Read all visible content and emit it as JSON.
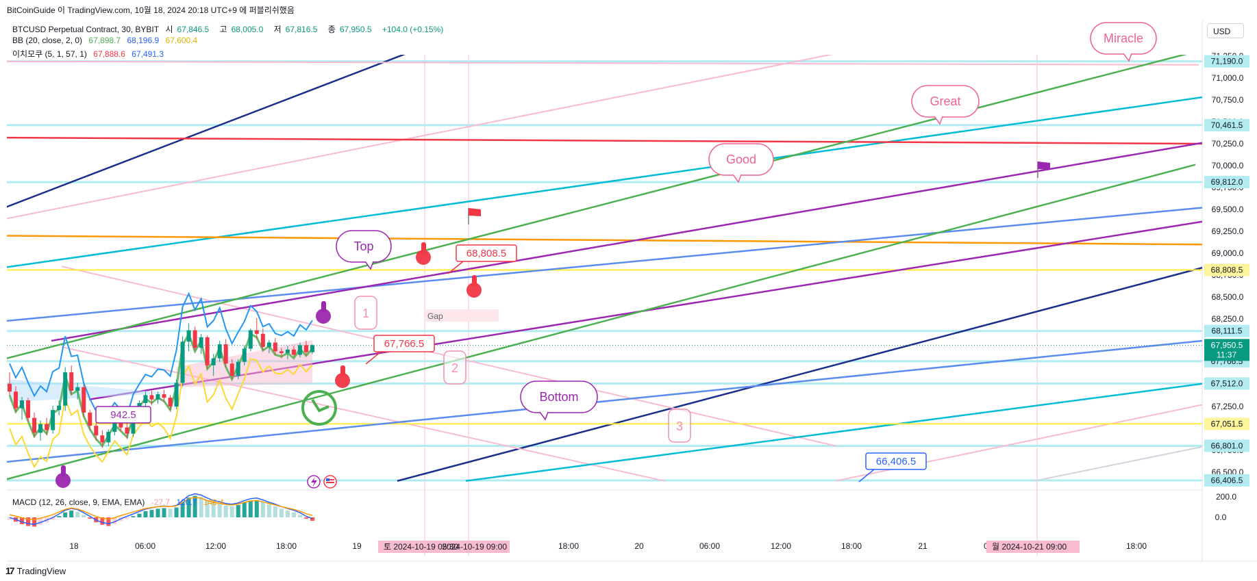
{
  "header": {
    "publish_line": "BitCoinGuide 이 TradingView.com, 10월 18, 2024 20:18 UTC+9 에 퍼블리쉬했음",
    "symbol": "BTCUSD Perpetual Contract, 30, BYBIT",
    "open_label": "시",
    "open": "67,846.5",
    "high_label": "고",
    "high": "68,005.0",
    "low_label": "저",
    "low": "67,816.5",
    "close_label": "종",
    "close": "67,950.5",
    "change": "+104.0 (+0.15%)"
  },
  "indicators": {
    "bb": {
      "label": "BB (20, close, 2, 0)",
      "values": [
        "67,898.7",
        "68,196.9",
        "67,600.4"
      ],
      "colors": [
        "#4caf50",
        "#2962ff",
        "#e0b400"
      ]
    },
    "ichimoku": {
      "label": "이치모쿠 (5, 1, 57, 1)",
      "values": [
        "67,888.6",
        "67,491.3"
      ],
      "colors": [
        "#f23645",
        "#2962ff"
      ]
    },
    "macd": {
      "label": "MACD (12, 26, close, 9, EMA, EMA)",
      "values": [
        "-27.7",
        "120.7",
        "148.4"
      ],
      "colors": [
        "#f7a1a1",
        "#2962ff",
        "#ff9800"
      ]
    }
  },
  "currency_button": "USD",
  "brand": "TradingView",
  "colors": {
    "up": "#089981",
    "down": "#f23645",
    "navy": "#1a2f8a",
    "pink": "#f8bbd0",
    "cyan": "#00bcd4",
    "red": "#f23645",
    "orange": "#ff9800",
    "yellow": "#ffeb3b",
    "blue": "#5b8def",
    "green": "#4caf50",
    "purple": "#9c27b0"
  },
  "chart_data": {
    "type": "candlestick",
    "symbol": "BTCUSD Perpetual Contract",
    "interval": "30",
    "exchange": "BYBIT",
    "price_axis": {
      "ticks": [
        "71,250.0",
        "71,000.0",
        "70,750.0",
        "70,500.0",
        "70,250.0",
        "70,000.0",
        "69,750.0",
        "69,500.0",
        "69,250.0",
        "69,000.0",
        "68,750.0",
        "68,500.0",
        "68,250.0",
        "67,250.0",
        "66,750.0",
        "66,500.0"
      ],
      "ylim": [
        66250,
        71450
      ]
    },
    "macd_axis": {
      "ticks": [
        "200.0",
        "0.0"
      ]
    },
    "time_axis": {
      "ticks": [
        "18",
        "06:00",
        "12:00",
        "18:00",
        "19",
        "06:00",
        "12:00",
        "18:00",
        "20",
        "06:00",
        "12:00",
        "18:00",
        "21",
        "06:00",
        "12:00",
        "18:00"
      ],
      "highlight_labels": [
        "토 2024-10-19  05:30",
        "2024-10-19  09:00",
        "월 2024-10-21  09:00"
      ]
    },
    "price_labels": [
      {
        "text": "71,190.0",
        "price": 71190,
        "bg": "#b2ebf2"
      },
      {
        "text": "70,461.5",
        "price": 70461.5,
        "bg": "#b2ebf2"
      },
      {
        "text": "69,812.0",
        "price": 69812,
        "bg": "#b2ebf2"
      },
      {
        "text": "68,808.5",
        "price": 68808.5,
        "bg": "#fff59d"
      },
      {
        "text": "68,111.5",
        "price": 68111.5,
        "bg": "#b2ebf2"
      },
      {
        "text": "67,766.5",
        "price": 67766.5,
        "bg": "#b2ebf2"
      },
      {
        "text": "67,512.0",
        "price": 67512,
        "bg": "#b2ebf2"
      },
      {
        "text": "67,051.5",
        "price": 67051.5,
        "bg": "#fff59d"
      },
      {
        "text": "66,801.0",
        "price": 66801,
        "bg": "#b2ebf2"
      },
      {
        "text": "66,406.5",
        "price": 66406.5,
        "bg": "#b2ebf2"
      }
    ],
    "current_price": {
      "text": "67,950.5",
      "countdown": "11:37",
      "price": 67950.5,
      "bg": "#089981"
    },
    "annotations": {
      "bubbles": [
        "Miracle",
        "Great",
        "Good",
        "Top",
        "Bottom"
      ],
      "boxes": [
        "68,808.5",
        "67,766.5",
        "66,406.5",
        "942.5"
      ],
      "numbers": [
        "1",
        "2",
        "3"
      ],
      "gap": "Gap"
    },
    "candles": [
      [
        67510,
        67640,
        67380,
        67420
      ],
      [
        67420,
        67480,
        67190,
        67230
      ],
      [
        67230,
        67360,
        67100,
        67320
      ],
      [
        67320,
        67350,
        67080,
        67120
      ],
      [
        67120,
        67180,
        66900,
        66950
      ],
      [
        66950,
        67090,
        66860,
        67050
      ],
      [
        67050,
        67120,
        66920,
        66980
      ],
      [
        66980,
        67260,
        66940,
        67210
      ],
      [
        67210,
        67320,
        67150,
        67260
      ],
      [
        67260,
        67700,
        67200,
        67640
      ],
      [
        67640,
        67720,
        67380,
        67430
      ],
      [
        67430,
        67520,
        67330,
        67470
      ],
      [
        67470,
        67500,
        67130,
        67180
      ],
      [
        67180,
        67210,
        66980,
        67030
      ],
      [
        67030,
        67080,
        66860,
        66920
      ],
      [
        66920,
        66980,
        66780,
        66840
      ],
      [
        66840,
        66990,
        66800,
        66960
      ],
      [
        66960,
        67120,
        66920,
        67080
      ],
      [
        67080,
        67140,
        66960,
        67010
      ],
      [
        67010,
        67060,
        66880,
        66940
      ],
      [
        66940,
        67220,
        66900,
        67180
      ],
      [
        67180,
        67320,
        67140,
        67290
      ],
      [
        67290,
        67420,
        67250,
        67380
      ],
      [
        67380,
        67430,
        67270,
        67330
      ],
      [
        67330,
        67420,
        67280,
        67390
      ],
      [
        67390,
        67440,
        67300,
        67350
      ],
      [
        67350,
        67380,
        67210,
        67250
      ],
      [
        67250,
        67560,
        67220,
        67520
      ],
      [
        67520,
        68050,
        67480,
        67990
      ],
      [
        67990,
        68200,
        67880,
        68120
      ],
      [
        68120,
        68160,
        67890,
        67920
      ],
      [
        67920,
        68080,
        67850,
        68040
      ],
      [
        68040,
        68060,
        67680,
        67720
      ],
      [
        67720,
        67850,
        67600,
        67800
      ],
      [
        67800,
        68000,
        67760,
        67960
      ],
      [
        67960,
        68020,
        67700,
        67740
      ],
      [
        67740,
        67790,
        67560,
        67600
      ],
      [
        67600,
        67790,
        67560,
        67760
      ],
      [
        67760,
        67950,
        67720,
        67910
      ],
      [
        67910,
        68140,
        67880,
        68120
      ],
      [
        68120,
        68260,
        68020,
        68080
      ],
      [
        68080,
        68140,
        67890,
        67930
      ],
      [
        67930,
        68010,
        67860,
        67980
      ],
      [
        67980,
        68030,
        67840,
        67880
      ],
      [
        67880,
        67920,
        67800,
        67860
      ],
      [
        67860,
        67940,
        67790,
        67900
      ],
      [
        67900,
        67940,
        67820,
        67840
      ],
      [
        67840,
        67980,
        67810,
        67950
      ],
      [
        67950,
        68000,
        67830,
        67870
      ],
      [
        67870,
        67960,
        67850,
        67950
      ]
    ],
    "macd_hist": [
      -20,
      -35,
      -55,
      -70,
      -75,
      -60,
      -40,
      -20,
      10,
      40,
      55,
      45,
      20,
      -10,
      -40,
      -60,
      -70,
      -55,
      -30,
      -10,
      10,
      30,
      50,
      60,
      70,
      75,
      70,
      80,
      120,
      160,
      175,
      165,
      140,
      120,
      110,
      95,
      90,
      100,
      120,
      135,
      140,
      125,
      105,
      90,
      70,
      55,
      40,
      20,
      -10,
      -28
    ],
    "trendlines": [
      {
        "color": "#1a2f8a",
        "p1": [
          0,
          69500
        ],
        "p2": [
          650,
          71450
        ]
      },
      {
        "color": "#1a2f8a",
        "p1": [
          580,
          66400
        ],
        "p2": [
          1835,
          69000
        ]
      },
      {
        "color": "#f8bbd0",
        "p1": [
          0,
          69380
        ],
        "p2": [
          1330,
          71450
        ]
      },
      {
        "color": "#f8bbd0",
        "p1": [
          0,
          71190
        ],
        "p2": [
          1750,
          71150
        ]
      },
      {
        "color": "#f8bbd0",
        "p1": [
          90,
          68850
        ],
        "p2": [
          1220,
          66800
        ]
      },
      {
        "color": "#f8bbd0",
        "p1": [
          90,
          67930
        ],
        "p2": [
          970,
          66400
        ]
      },
      {
        "color": "#f8bbd0",
        "p1": [
          1220,
          66400
        ],
        "p2": [
          1755,
          67270
        ]
      },
      {
        "color": "#00bcd4",
        "p1": [
          0,
          68830
        ],
        "p2": [
          1755,
          70780
        ]
      },
      {
        "color": "#00bcd4",
        "p1": [
          680,
          66400
        ],
        "p2": [
          1755,
          67510
        ]
      },
      {
        "color": "#d1d4dc",
        "p1": [
          1510,
          66400
        ],
        "p2": [
          1755,
          66790
        ]
      },
      {
        "color": "#f23645",
        "p1": [
          0,
          70320
        ],
        "p2": [
          1755,
          70250
        ]
      },
      {
        "color": "#ff9800",
        "p1": [
          0,
          69200
        ],
        "p2": [
          1755,
          69100
        ]
      },
      {
        "color": "#ffeb3b",
        "p1": [
          0,
          68808.5
        ],
        "p2": [
          1755,
          68808.5
        ]
      },
      {
        "color": "#ffeb3b",
        "p1": [
          0,
          67051.5
        ],
        "p2": [
          1755,
          67051.5
        ]
      },
      {
        "color": "#5b8def",
        "p1": [
          0,
          68220
        ],
        "p2": [
          1755,
          69520
        ]
      },
      {
        "color": "#5b8def",
        "p1": [
          0,
          66610
        ],
        "p2": [
          1755,
          68000
        ]
      },
      {
        "color": "#9c27b0",
        "p1": [
          75,
          68000
        ],
        "p2": [
          1755,
          70260
        ]
      },
      {
        "color": "#9c27b0",
        "p1": [
          130,
          67330
        ],
        "p2": [
          1755,
          69360
        ]
      },
      {
        "color": "#4caf50",
        "p1": [
          0,
          67780
        ],
        "p2": [
          1745,
          71300
        ]
      },
      {
        "color": "#4caf50",
        "p1": [
          0,
          66400
        ],
        "p2": [
          1745,
          70010
        ]
      }
    ]
  }
}
